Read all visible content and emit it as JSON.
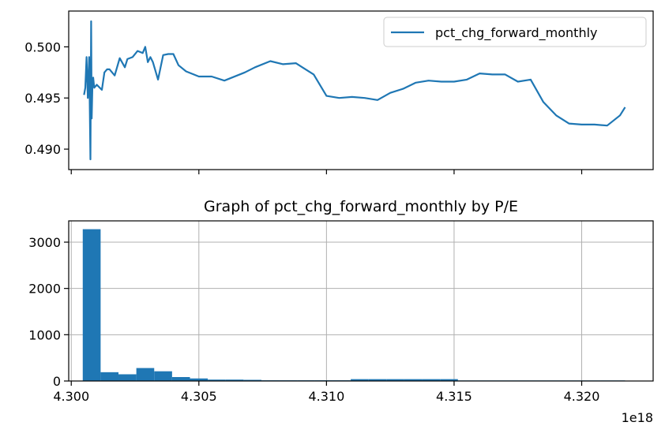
{
  "chart_data": [
    {
      "type": "line",
      "title": "",
      "xlabel": "",
      "ylabel": "",
      "ylim": [
        0.488,
        0.5035
      ],
      "xlim": [
        4.2999,
        4.3228
      ],
      "ytick_labels": [
        "0.490",
        "0.495",
        "0.500"
      ],
      "ytick_values": [
        0.49,
        0.495,
        0.5
      ],
      "xtick_values": [
        4.3,
        4.305,
        4.31,
        4.315,
        4.32
      ],
      "x_ticklabels_shown": false,
      "grid": false,
      "legend": {
        "position": "upper right",
        "entries": [
          "pct_chg_forward_monthly"
        ]
      },
      "color": "#1f77b4",
      "series": [
        {
          "name": "pct_chg_forward_monthly",
          "x": [
            4.3005,
            4.30055,
            4.3006,
            4.30065,
            4.3007,
            4.30075,
            4.30078,
            4.3008,
            4.30083,
            4.30086,
            4.3009,
            4.301,
            4.3012,
            4.3013,
            4.3014,
            4.3015,
            4.3017,
            4.3019,
            4.3021,
            4.3022,
            4.3024,
            4.3026,
            4.3028,
            4.3029,
            4.303,
            4.3031,
            4.3032,
            4.3034,
            4.3036,
            4.3038,
            4.304,
            4.3042,
            4.3045,
            4.3048,
            4.305,
            4.3055,
            4.306,
            4.3068,
            4.3072,
            4.3078,
            4.3083,
            4.3088,
            4.3095,
            4.31,
            4.3105,
            4.311,
            4.3115,
            4.312,
            4.3125,
            4.313,
            4.3135,
            4.314,
            4.3145,
            4.315,
            4.3155,
            4.316,
            4.3165,
            4.317,
            4.3175,
            4.318,
            4.3185,
            4.319,
            4.3195,
            4.32,
            4.3205,
            4.321,
            4.3215,
            4.3217
          ],
          "values": [
            0.4953,
            0.496,
            0.499,
            0.495,
            0.499,
            0.489,
            0.5025,
            0.493,
            0.4965,
            0.497,
            0.496,
            0.4963,
            0.4958,
            0.4975,
            0.4978,
            0.4978,
            0.4972,
            0.4989,
            0.498,
            0.4988,
            0.499,
            0.4996,
            0.4994,
            0.5,
            0.4985,
            0.499,
            0.4985,
            0.4968,
            0.4992,
            0.4993,
            0.4993,
            0.4982,
            0.4976,
            0.4973,
            0.4971,
            0.4971,
            0.4967,
            0.4975,
            0.498,
            0.4986,
            0.4983,
            0.4984,
            0.4973,
            0.4952,
            0.495,
            0.4951,
            0.495,
            0.4948,
            0.4955,
            0.4959,
            0.4965,
            0.4967,
            0.4966,
            0.4966,
            0.4968,
            0.4974,
            0.4973,
            0.4973,
            0.4966,
            0.4968,
            0.4946,
            0.4933,
            0.4925,
            0.4924,
            0.4924,
            0.4923,
            0.4933,
            0.4941
          ]
        }
      ]
    },
    {
      "type": "bar",
      "title": "Graph of pct_chg_forward_monthly by P/E",
      "xlabel": "",
      "ylabel": "",
      "ylim": [
        0,
        3460
      ],
      "xlim": [
        4.2999,
        4.3228
      ],
      "x_offset_label": "1e18",
      "xtick_labels": [
        "4.300",
        "4.305",
        "4.310",
        "4.315",
        "4.320"
      ],
      "xtick_values": [
        4.3,
        4.305,
        4.31,
        4.315,
        4.32
      ],
      "ytick_labels": [
        "0",
        "1000",
        "2000",
        "3000"
      ],
      "ytick_values": [
        0,
        1000,
        2000,
        3000
      ],
      "grid": true,
      "color": "#1f77b4",
      "bin_edges": [
        4.30045,
        4.30115,
        4.30185,
        4.30255,
        4.30325,
        4.30395,
        4.30465,
        4.30535,
        4.30605,
        4.30675,
        4.30745,
        4.30815,
        4.30885,
        4.30955,
        4.31025,
        4.31095,
        4.31165,
        4.31235,
        4.31305,
        4.31375,
        4.31445,
        4.31515,
        4.31585,
        4.31655,
        4.31725,
        4.31795,
        4.31865,
        4.31935,
        4.32005,
        4.32075,
        4.32145,
        4.3217
      ],
      "values": [
        3280,
        190,
        145,
        280,
        210,
        85,
        55,
        30,
        30,
        25,
        15,
        15,
        15,
        15,
        15,
        40,
        40,
        40,
        40,
        40,
        40,
        12,
        12,
        12,
        12,
        12,
        12,
        12,
        12,
        12,
        12
      ]
    }
  ]
}
